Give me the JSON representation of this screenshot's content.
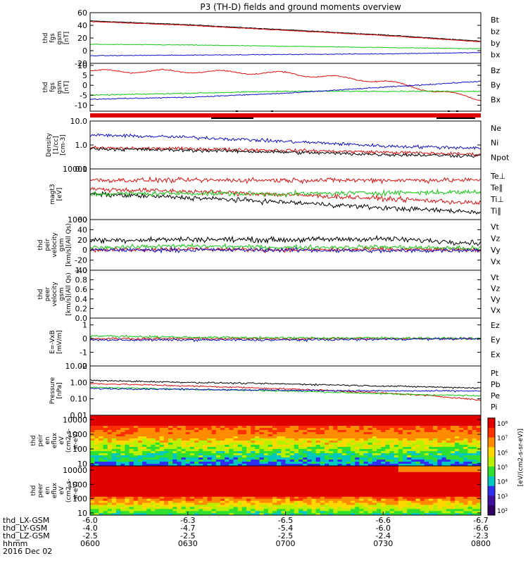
{
  "title": "P3 (TH-D) fields and ground moments overview",
  "colors": {
    "black": "#000000",
    "red": "#e01010",
    "green": "#10c810",
    "blue": "#1010c8",
    "bg": "#ffffff"
  },
  "panels": [
    {
      "ylabel": [
        "thd",
        "fgs",
        "gsm",
        "[nT]"
      ],
      "ticks": [
        "60",
        "40",
        "20",
        "0",
        "-20"
      ],
      "tickvals": [
        60,
        40,
        20,
        0,
        -20
      ],
      "ylim": [
        -20,
        60
      ],
      "log": false,
      "legend": [
        {
          "label": "Bt",
          "color": "black"
        },
        {
          "label": "bz",
          "color": "red"
        },
        {
          "label": "by",
          "color": "green"
        },
        {
          "label": "bx",
          "color": "blue"
        }
      ]
    },
    {
      "ylabel": [
        "thd",
        "fgs",
        "gsm",
        "[nT]"
      ],
      "ticks": [
        "10",
        "5",
        "0",
        "-5",
        "-10"
      ],
      "tickvals": [
        10,
        5,
        0,
        -5,
        -10
      ],
      "ylim": [
        -13,
        11
      ],
      "log": false,
      "legend": [
        {
          "label": "Bz",
          "color": "red"
        },
        {
          "label": "By",
          "color": "green"
        },
        {
          "label": "Bx",
          "color": "blue"
        }
      ]
    },
    {
      "ylabel": [
        "Density",
        "[1/cc]",
        "[cm-3]"
      ],
      "ticks": [
        "10.0",
        "1.0",
        "0.1"
      ],
      "tickvals": [
        10,
        1,
        0.1
      ],
      "ylim": [
        0.1,
        10
      ],
      "log": true,
      "legend": [
        {
          "label": "Ne",
          "color": "red"
        },
        {
          "label": "Ni",
          "color": "black"
        },
        {
          "label": "Npot",
          "color": "blue"
        }
      ]
    },
    {
      "ylabel": [
        "magt3",
        "[eV]"
      ],
      "ticks": [
        "10000",
        "1000"
      ],
      "tickvals": [
        10000,
        1000
      ],
      "ylim": [
        1000,
        10000
      ],
      "log": true,
      "legend": [
        {
          "label": "Te⊥",
          "color": "red"
        },
        {
          "label": "Te∥",
          "color": "black"
        },
        {
          "label": "Ti⊥",
          "color": "red"
        },
        {
          "label": "Ti∥",
          "color": "green"
        }
      ]
    },
    {
      "ylabel": [
        "thd",
        "peir",
        "velocity",
        "gsm",
        "[km/s](All Qs)"
      ],
      "ticks": [
        "60",
        "40",
        "20",
        "0",
        "-20",
        "-40"
      ],
      "tickvals": [
        60,
        40,
        20,
        0,
        -20,
        -40
      ],
      "ylim": [
        -40,
        60
      ],
      "log": false,
      "legend": [
        {
          "label": "Vt",
          "color": "black"
        },
        {
          "label": "Vz",
          "color": "red"
        },
        {
          "label": "Vy",
          "color": "green"
        },
        {
          "label": "Vx",
          "color": "blue"
        }
      ]
    },
    {
      "ylabel": [
        "thd",
        "peer",
        "velocity",
        "gsm",
        "[km/s](All Qs)"
      ],
      "ticks": [
        "1.0",
        "0.8",
        "0.6",
        "0.4",
        "0.2",
        "0.0"
      ],
      "tickvals": [
        1,
        0.8,
        0.6,
        0.4,
        0.2,
        0
      ],
      "ylim": [
        0,
        1
      ],
      "log": false,
      "legend": [
        {
          "label": "Vt",
          "color": "black"
        },
        {
          "label": "Vz",
          "color": "red"
        },
        {
          "label": "Vy",
          "color": "green"
        },
        {
          "label": "Vx",
          "color": "blue"
        }
      ]
    },
    {
      "ylabel": [
        "E=-VxB",
        "[mV/m]"
      ],
      "ticks": [
        "1",
        "0",
        "-1",
        "-2"
      ],
      "tickvals": [
        1,
        0,
        -1,
        -2
      ],
      "ylim": [
        -2,
        1.5
      ],
      "log": false,
      "legend": [
        {
          "label": "Ez",
          "color": "red"
        },
        {
          "label": "Ey",
          "color": "green"
        },
        {
          "label": "Ex",
          "color": "blue"
        }
      ]
    },
    {
      "ylabel": [
        "Pressure",
        "[nPa]"
      ],
      "ticks": [
        "10.00",
        "1.00",
        "0.10",
        "0.01"
      ],
      "tickvals": [
        10,
        1,
        0.1,
        0.01
      ],
      "ylim": [
        0.01,
        10
      ],
      "log": true,
      "legend": [
        {
          "label": "Pt",
          "color": "black"
        },
        {
          "label": "Pb",
          "color": "red"
        },
        {
          "label": "Pe",
          "color": "green"
        },
        {
          "label": "Pi",
          "color": "blue"
        }
      ]
    },
    {
      "ylabel": [
        "thd",
        "peir",
        "en",
        "eflux",
        "eV",
        "(cm2-s-",
        "sr-eV)"
      ],
      "ticks": [
        "10000",
        "1000",
        "100",
        "10"
      ],
      "tickvals": [
        10000,
        1000,
        100,
        10
      ],
      "ylim": [
        7,
        20000
      ],
      "log": true,
      "legend": []
    },
    {
      "ylabel": [
        "thd",
        "peer",
        "en",
        "eflux",
        "eV",
        "(cm2-s-",
        "sr-eV)"
      ],
      "ticks": [
        "10000",
        "1000",
        "100",
        "10"
      ],
      "tickvals": [
        10000,
        1000,
        100,
        10
      ],
      "ylim": [
        7,
        20000
      ],
      "log": true,
      "legend": []
    }
  ],
  "colorbar": {
    "label": "[eV/(cm2-s-sr-eV)]",
    "ticks": [
      "10⁸",
      "10⁷",
      "10⁶",
      "10⁵",
      "10⁴",
      "10³",
      "10²"
    ]
  },
  "xaxis": {
    "rows": [
      {
        "label": "thd_LX-GSM",
        "values": [
          "-6.0",
          "-6.3",
          "-6.5",
          "-6.6",
          "-6.7"
        ]
      },
      {
        "label": "thd_LY-GSM",
        "values": [
          "-4.0",
          "-4.7",
          "-5.4",
          "-6.0",
          "-6.6"
        ]
      },
      {
        "label": "thd_LZ-GSM",
        "values": [
          "-2.5",
          "-2.5",
          "-2.5",
          "-2.4",
          "-2.3"
        ]
      },
      {
        "label": "hhmm",
        "values": [
          "0600",
          "0630",
          "0700",
          "0730",
          "0800"
        ]
      }
    ],
    "date": "2016 Dec 02"
  },
  "chart_data": {
    "type": "line",
    "title": "P3 (TH-D) fields and ground moments overview",
    "x": [
      "0600",
      "0630",
      "0700",
      "0730",
      "0800"
    ],
    "date": "2016 Dec 02",
    "panels": [
      {
        "name": "thd fgs gsm [nT]",
        "ylim": [
          -20,
          60
        ],
        "series": [
          {
            "name": "Bt",
            "values": [
              47,
              41,
              33,
              25,
              15
            ]
          },
          {
            "name": "bz",
            "values": [
              46,
              40,
              32,
              24,
              14
            ]
          },
          {
            "name": "by",
            "values": [
              10,
              9,
              7,
              5,
              3
            ]
          },
          {
            "name": "bx",
            "values": [
              -8,
              -7,
              -6,
              -5,
              -3
            ]
          }
        ]
      },
      {
        "name": "thd fgs gsm [nT]",
        "ylim": [
          -13,
          11
        ],
        "series": [
          {
            "name": "Bz",
            "values": [
              7,
              7,
              6,
              2,
              -7
            ]
          },
          {
            "name": "By",
            "values": [
              -5,
              -4,
              -3,
              -3,
              -3
            ]
          },
          {
            "name": "Bx",
            "values": [
              -7,
              -6,
              -4,
              -1,
              2
            ]
          }
        ]
      },
      {
        "name": "Density [1/cc]",
        "ylim": [
          0.1,
          10
        ],
        "log": true,
        "series": [
          {
            "name": "Ne",
            "values": [
              0.75,
              0.7,
              0.6,
              0.5,
              0.4
            ]
          },
          {
            "name": "Ni",
            "values": [
              0.7,
              0.6,
              0.5,
              0.4,
              0.35
            ]
          },
          {
            "name": "Npot",
            "values": [
              2.6,
              2.1,
              1.4,
              0.9,
              0.75
            ]
          }
        ]
      },
      {
        "name": "magt3 [eV]",
        "ylim": [
          1000,
          10000
        ],
        "log": true,
        "series": [
          {
            "name": "Te⊥",
            "values": [
              4000,
              3600,
              3100,
              2600,
              2100
            ]
          },
          {
            "name": "Te∥",
            "values": [
              3200,
              2700,
              2200,
              1700,
              1400
            ]
          },
          {
            "name": "Ti⊥",
            "values": [
              6000,
              6000,
              6000,
              6000,
              6000
            ]
          },
          {
            "name": "Ti∥",
            "values": [
              3200,
              3300,
              3200,
              3400,
              3500
            ]
          }
        ]
      },
      {
        "name": "thd peir velocity gsm [km/s](All Qs)",
        "ylim": [
          -40,
          60
        ],
        "series": [
          {
            "name": "Vt",
            "values": [
              15,
              17,
              16,
              18,
              10
            ]
          },
          {
            "name": "Vz",
            "values": [
              0,
              2,
              0,
              1,
              0
            ]
          },
          {
            "name": "Vy",
            "values": [
              5,
              8,
              5,
              6,
              3
            ]
          },
          {
            "name": "Vx",
            "values": [
              0,
              0,
              0,
              -2,
              0
            ]
          }
        ]
      },
      {
        "name": "thd peer velocity gsm [km/s](All Qs)",
        "ylim": [
          0,
          1
        ],
        "series": []
      },
      {
        "name": "E=-VxB [mV/m]",
        "ylim": [
          -2,
          1.5
        ],
        "series": [
          {
            "name": "Ez",
            "values": [
              0,
              0,
              0,
              0,
              0
            ]
          },
          {
            "name": "Ey",
            "values": [
              0.2,
              0.1,
              0.05,
              0.05,
              0.0
            ]
          },
          {
            "name": "Ex",
            "values": [
              -0.1,
              -0.1,
              -0.1,
              -0.05,
              0
            ]
          }
        ]
      },
      {
        "name": "Pressure [nPa]",
        "ylim": [
          0.01,
          10
        ],
        "log": true,
        "series": [
          {
            "name": "Pt",
            "values": [
              1.3,
              1.0,
              0.8,
              0.6,
              0.45
            ]
          },
          {
            "name": "Pb",
            "values": [
              0.85,
              0.6,
              0.4,
              0.22,
              0.08
            ]
          },
          {
            "name": "Pe",
            "values": [
              0.5,
              0.38,
              0.3,
              0.2,
              0.15
            ]
          },
          {
            "name": "Pi",
            "values": [
              0.42,
              0.38,
              0.33,
              0.3,
              0.3
            ]
          }
        ]
      },
      {
        "name": "thd peir en eflux eV/(cm2-s-sr-eV)",
        "type": "heatmap",
        "ylim": [
          7,
          20000
        ]
      },
      {
        "name": "thd peer en eflux eV/(cm2-s-sr-eV)",
        "type": "heatmap",
        "ylim": [
          7,
          20000
        ]
      }
    ]
  }
}
